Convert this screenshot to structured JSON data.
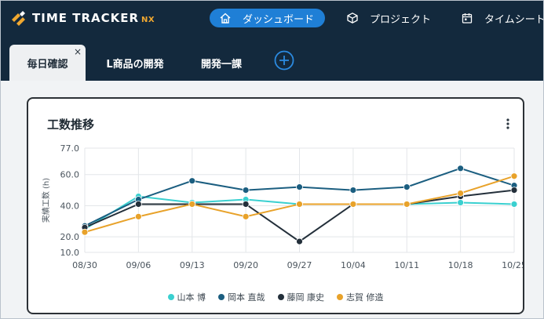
{
  "app": {
    "logo_text": "TIME TRACKER",
    "logo_suffix": "NX"
  },
  "nav": {
    "items": [
      {
        "label": "ダッシュボード",
        "icon": "home-icon",
        "active": true
      },
      {
        "label": "プロジェクト",
        "icon": "cube-icon",
        "active": false
      },
      {
        "label": "タイムシート",
        "icon": "calendar-icon",
        "active": false
      }
    ]
  },
  "tabs": {
    "items": [
      {
        "label": "毎日確認",
        "active": true,
        "close": "×"
      },
      {
        "label": "L商品の開発",
        "active": false
      },
      {
        "label": "開発一課",
        "active": false
      }
    ],
    "add_icon": "plus-circle-icon"
  },
  "card": {
    "title": "工数推移"
  },
  "colors": {
    "nav_bg": "#13293d",
    "accent": "#1f7fd6",
    "series": [
      "#3ad0d0",
      "#1b5e80",
      "#232f3a",
      "#e8a22a"
    ]
  },
  "chart_data": {
    "type": "line",
    "title": "工数推移",
    "xlabel": "",
    "ylabel": "実績工数 (h)",
    "categories": [
      "08/30",
      "09/06",
      "09/13",
      "09/20",
      "09/27",
      "10/04",
      "10/11",
      "10/18",
      "10/25"
    ],
    "y_ticks": [
      "77.0",
      "60.0",
      "40.0",
      "20.0",
      "10.0"
    ],
    "ylim": [
      10,
      77
    ],
    "grid": true,
    "legend_position": "bottom",
    "series": [
      {
        "name": "山本 博",
        "values": [
          25,
          46,
          42,
          44,
          41,
          41,
          41,
          42,
          41
        ]
      },
      {
        "name": "岡本 直哉",
        "values": [
          27,
          44,
          56,
          50,
          52,
          50,
          52,
          64,
          53
        ]
      },
      {
        "name": "藤岡 康史",
        "values": [
          26,
          41,
          41,
          41,
          17,
          41,
          41,
          46,
          50
        ]
      },
      {
        "name": "志賀 修造",
        "values": [
          23,
          33,
          41,
          33,
          41,
          41,
          41,
          48,
          59
        ]
      }
    ]
  }
}
